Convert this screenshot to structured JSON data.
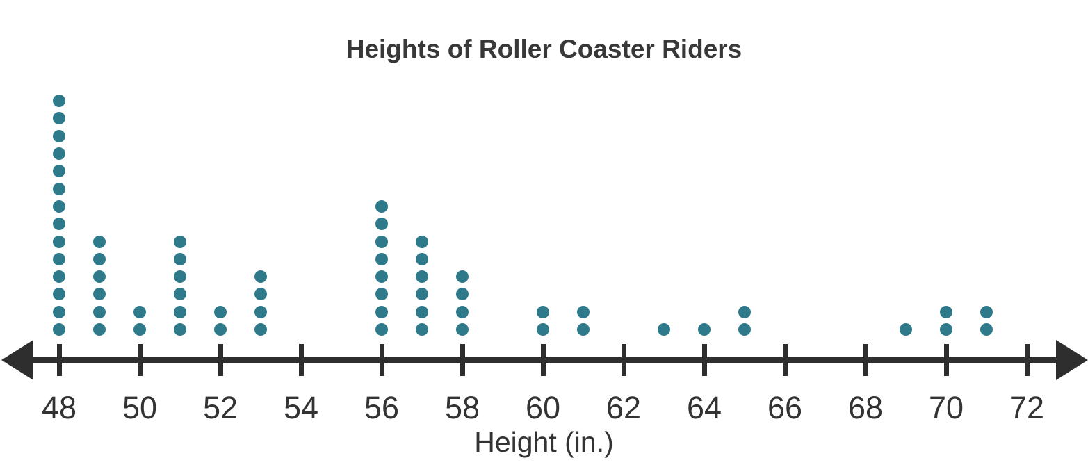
{
  "chart_data": {
    "type": "dotplot",
    "title": "Heights of Roller Coaster Riders",
    "xlabel": "Height (in.)",
    "x_min": 48,
    "x_max": 72,
    "tick_step": 2,
    "tick_labels": [
      "48",
      "50",
      "52",
      "54",
      "56",
      "58",
      "60",
      "62",
      "64",
      "66",
      "68",
      "70",
      "72"
    ],
    "points": [
      {
        "x": 48,
        "count": 14
      },
      {
        "x": 49,
        "count": 6
      },
      {
        "x": 50,
        "count": 2
      },
      {
        "x": 51,
        "count": 6
      },
      {
        "x": 52,
        "count": 2
      },
      {
        "x": 53,
        "count": 4
      },
      {
        "x": 56,
        "count": 8
      },
      {
        "x": 57,
        "count": 6
      },
      {
        "x": 58,
        "count": 4
      },
      {
        "x": 60,
        "count": 2
      },
      {
        "x": 61,
        "count": 2
      },
      {
        "x": 63,
        "count": 1
      },
      {
        "x": 64,
        "count": 1
      },
      {
        "x": 65,
        "count": 2
      },
      {
        "x": 69,
        "count": 1
      },
      {
        "x": 70,
        "count": 2
      },
      {
        "x": 71,
        "count": 2
      }
    ],
    "total_points": 65,
    "grid": false,
    "legend": "none",
    "colors": {
      "dot": "#2e7a8b",
      "axis": "#2e2e2e",
      "title_text": "#383838",
      "label_text": "#333333"
    }
  }
}
